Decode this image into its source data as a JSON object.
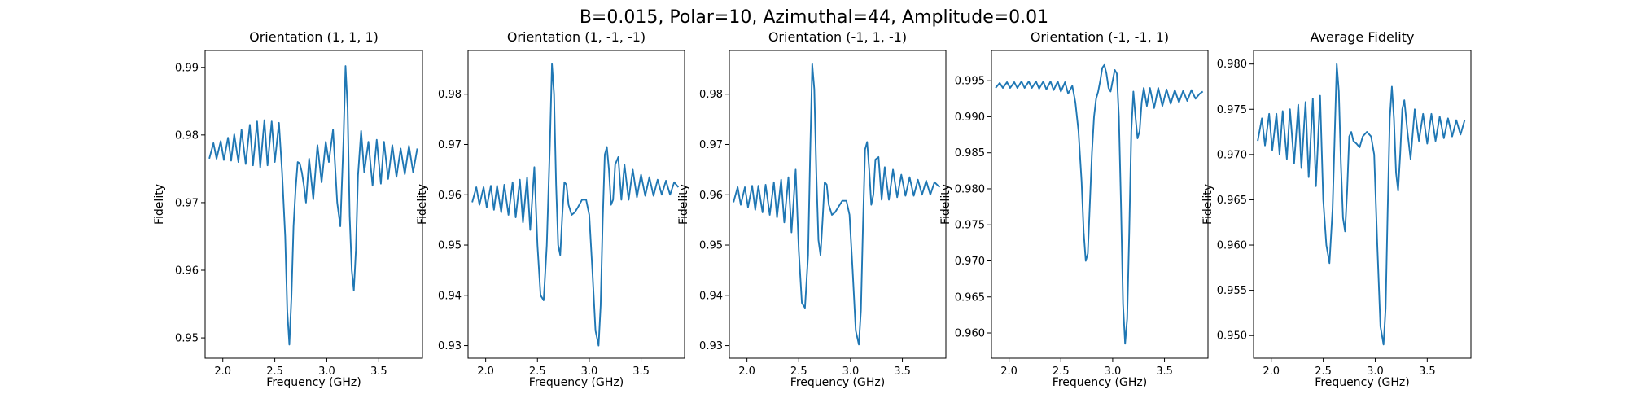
{
  "figure_title": "B=0.015, Polar=10, Azimuthal=44, Amplitude=0.01",
  "chart_data": [
    {
      "type": "line",
      "title": "Orientation (1, 1, 1)",
      "xlabel": "Frequency (GHz)",
      "ylabel": "Fidelity",
      "xlim": [
        1.83,
        3.92
      ],
      "ylim": [
        0.947,
        0.9925
      ],
      "xticks": [
        "2.0",
        "2.5",
        "3.0",
        "3.5"
      ],
      "yticks": [
        "0.95",
        "0.96",
        "0.97",
        "0.98",
        "0.99"
      ],
      "series": [
        {
          "x": [
            1.87,
            1.91,
            1.94,
            1.98,
            2.01,
            2.05,
            2.08,
            2.11,
            2.15,
            2.18,
            2.22,
            2.26,
            2.29,
            2.33,
            2.36,
            2.4,
            2.43,
            2.47,
            2.5,
            2.54,
            2.57,
            2.6,
            2.62,
            2.64,
            2.66,
            2.68,
            2.7,
            2.72,
            2.74,
            2.76,
            2.78,
            2.8,
            2.83,
            2.87,
            2.91,
            2.95,
            2.99,
            3.02,
            3.06,
            3.1,
            3.13,
            3.16,
            3.18,
            3.2,
            3.22,
            3.24,
            3.26,
            3.28,
            3.3,
            3.33,
            3.36,
            3.4,
            3.44,
            3.48,
            3.52,
            3.55,
            3.59,
            3.63,
            3.67,
            3.71,
            3.75,
            3.79,
            3.83,
            3.87
          ],
          "y": [
            0.9765,
            0.9788,
            0.9765,
            0.9791,
            0.9763,
            0.9796,
            0.9762,
            0.9801,
            0.976,
            0.9808,
            0.9757,
            0.9815,
            0.9755,
            0.982,
            0.9752,
            0.9822,
            0.9755,
            0.982,
            0.976,
            0.9818,
            0.9745,
            0.965,
            0.954,
            0.949,
            0.956,
            0.9665,
            0.972,
            0.976,
            0.9758,
            0.9745,
            0.9725,
            0.97,
            0.9765,
            0.9705,
            0.9785,
            0.973,
            0.979,
            0.976,
            0.9808,
            0.97,
            0.9665,
            0.979,
            0.9902,
            0.984,
            0.968,
            0.96,
            0.957,
            0.963,
            0.974,
            0.9806,
            0.9745,
            0.979,
            0.9725,
            0.9793,
            0.9728,
            0.979,
            0.9735,
            0.9785,
            0.9738,
            0.978,
            0.9742,
            0.9784,
            0.9745,
            0.978
          ]
        }
      ]
    },
    {
      "type": "line",
      "title": "Orientation (1, -1, -1)",
      "xlabel": "Frequency (GHz)",
      "ylabel": "Fidelity",
      "xlim": [
        1.83,
        3.92
      ],
      "ylim": [
        0.9275,
        0.9887
      ],
      "xticks": [
        "2.0",
        "2.5",
        "3.0",
        "3.5"
      ],
      "yticks": [
        "0.93",
        "0.94",
        "0.95",
        "0.96",
        "0.97",
        "0.98"
      ],
      "series": [
        {
          "x": [
            1.87,
            1.91,
            1.94,
            1.98,
            2.01,
            2.05,
            2.08,
            2.11,
            2.15,
            2.18,
            2.22,
            2.26,
            2.29,
            2.33,
            2.36,
            2.4,
            2.43,
            2.47,
            2.5,
            2.53,
            2.56,
            2.59,
            2.62,
            2.64,
            2.66,
            2.68,
            2.7,
            2.72,
            2.74,
            2.76,
            2.78,
            2.8,
            2.83,
            2.86,
            2.89,
            2.93,
            2.97,
            3.0,
            3.03,
            3.06,
            3.09,
            3.11,
            3.13,
            3.15,
            3.17,
            3.19,
            3.21,
            3.23,
            3.25,
            3.28,
            3.31,
            3.34,
            3.38,
            3.42,
            3.46,
            3.5,
            3.54,
            3.58,
            3.62,
            3.66,
            3.7,
            3.74,
            3.78,
            3.82,
            3.86
          ],
          "y": [
            0.9585,
            0.9615,
            0.958,
            0.9615,
            0.9575,
            0.9618,
            0.957,
            0.9618,
            0.9565,
            0.962,
            0.956,
            0.9625,
            0.9555,
            0.963,
            0.9545,
            0.9635,
            0.953,
            0.9655,
            0.95,
            0.94,
            0.939,
            0.95,
            0.97,
            0.986,
            0.98,
            0.962,
            0.95,
            0.948,
            0.956,
            0.9625,
            0.962,
            0.958,
            0.956,
            0.9565,
            0.9575,
            0.959,
            0.959,
            0.956,
            0.945,
            0.933,
            0.93,
            0.938,
            0.955,
            0.968,
            0.9695,
            0.965,
            0.958,
            0.959,
            0.966,
            0.9675,
            0.959,
            0.966,
            0.959,
            0.965,
            0.9595,
            0.964,
            0.9598,
            0.9635,
            0.9598,
            0.963,
            0.96,
            0.9628,
            0.96,
            0.9625,
            0.9615
          ]
        }
      ]
    },
    {
      "type": "line",
      "title": "Orientation (-1, 1, -1)",
      "xlabel": "Frequency (GHz)",
      "ylabel": "Fidelity",
      "xlim": [
        1.83,
        3.92
      ],
      "ylim": [
        0.9275,
        0.9887
      ],
      "xticks": [
        "2.0",
        "2.5",
        "3.0",
        "3.5"
      ],
      "yticks": [
        "0.93",
        "0.94",
        "0.95",
        "0.96",
        "0.97",
        "0.98"
      ],
      "series": [
        {
          "x": [
            1.87,
            1.91,
            1.94,
            1.98,
            2.01,
            2.05,
            2.08,
            2.11,
            2.15,
            2.18,
            2.22,
            2.26,
            2.29,
            2.33,
            2.36,
            2.4,
            2.43,
            2.47,
            2.5,
            2.53,
            2.56,
            2.59,
            2.61,
            2.63,
            2.65,
            2.67,
            2.69,
            2.71,
            2.73,
            2.75,
            2.77,
            2.79,
            2.82,
            2.85,
            2.88,
            2.92,
            2.96,
            2.99,
            3.02,
            3.05,
            3.08,
            3.1,
            3.12,
            3.14,
            3.16,
            3.18,
            3.2,
            3.22,
            3.24,
            3.27,
            3.3,
            3.33,
            3.37,
            3.41,
            3.45,
            3.49,
            3.53,
            3.57,
            3.61,
            3.65,
            3.69,
            3.73,
            3.77,
            3.81,
            3.86
          ],
          "y": [
            0.9585,
            0.9615,
            0.958,
            0.9615,
            0.9575,
            0.9618,
            0.957,
            0.9618,
            0.9565,
            0.962,
            0.956,
            0.9625,
            0.9555,
            0.963,
            0.9545,
            0.9635,
            0.9525,
            0.965,
            0.949,
            0.9385,
            0.9375,
            0.948,
            0.968,
            0.986,
            0.981,
            0.964,
            0.951,
            0.948,
            0.955,
            0.9625,
            0.962,
            0.958,
            0.956,
            0.9565,
            0.9575,
            0.9588,
            0.9588,
            0.956,
            0.945,
            0.933,
            0.9302,
            0.937,
            0.954,
            0.969,
            0.9705,
            0.965,
            0.958,
            0.96,
            0.967,
            0.9675,
            0.959,
            0.9655,
            0.959,
            0.965,
            0.9595,
            0.964,
            0.9598,
            0.9635,
            0.9598,
            0.963,
            0.96,
            0.9628,
            0.96,
            0.9625,
            0.9615
          ]
        }
      ]
    },
    {
      "type": "line",
      "title": "Orientation (-1, -1, 1)",
      "xlabel": "Frequency (GHz)",
      "ylabel": "Fidelity",
      "xlim": [
        1.83,
        3.92
      ],
      "ylim": [
        0.9565,
        0.9992
      ],
      "xticks": [
        "2.0",
        "2.5",
        "3.0",
        "3.5"
      ],
      "yticks": [
        "0.960",
        "0.965",
        "0.970",
        "0.975",
        "0.980",
        "0.985",
        "0.990",
        "0.995"
      ],
      "series": [
        {
          "x": [
            1.87,
            1.91,
            1.94,
            1.98,
            2.01,
            2.05,
            2.08,
            2.12,
            2.15,
            2.19,
            2.22,
            2.26,
            2.29,
            2.33,
            2.36,
            2.4,
            2.43,
            2.47,
            2.5,
            2.54,
            2.57,
            2.61,
            2.64,
            2.67,
            2.7,
            2.72,
            2.74,
            2.76,
            2.78,
            2.8,
            2.82,
            2.84,
            2.86,
            2.88,
            2.9,
            2.92,
            2.94,
            2.96,
            2.98,
            3.0,
            3.02,
            3.04,
            3.06,
            3.08,
            3.1,
            3.12,
            3.14,
            3.16,
            3.18,
            3.2,
            3.22,
            3.24,
            3.26,
            3.28,
            3.3,
            3.33,
            3.36,
            3.4,
            3.44,
            3.48,
            3.52,
            3.56,
            3.6,
            3.64,
            3.68,
            3.72,
            3.76,
            3.8,
            3.84,
            3.87
          ],
          "y": [
            0.994,
            0.9947,
            0.994,
            0.9948,
            0.994,
            0.9948,
            0.994,
            0.9949,
            0.994,
            0.9949,
            0.994,
            0.9949,
            0.9939,
            0.9949,
            0.9938,
            0.9949,
            0.9937,
            0.9949,
            0.9935,
            0.9948,
            0.9932,
            0.9943,
            0.992,
            0.988,
            0.981,
            0.974,
            0.97,
            0.971,
            0.978,
            0.985,
            0.99,
            0.9925,
            0.9935,
            0.995,
            0.9968,
            0.9972,
            0.996,
            0.994,
            0.9935,
            0.995,
            0.9965,
            0.996,
            0.99,
            0.978,
            0.964,
            0.9585,
            0.962,
            0.974,
            0.988,
            0.9935,
            0.99,
            0.987,
            0.988,
            0.992,
            0.994,
            0.9915,
            0.994,
            0.9912,
            0.994,
            0.9915,
            0.9938,
            0.9918,
            0.9937,
            0.992,
            0.9936,
            0.9922,
            0.9937,
            0.9925,
            0.9932,
            0.9935
          ]
        }
      ]
    },
    {
      "type": "line",
      "title": "Average Fidelity",
      "xlabel": "Frequency (GHz)",
      "ylabel": "Fidelity",
      "xlim": [
        1.83,
        3.92
      ],
      "ylim": [
        0.9475,
        0.9815
      ],
      "xticks": [
        "2.0",
        "2.5",
        "3.0",
        "3.5"
      ],
      "yticks": [
        "0.950",
        "0.955",
        "0.960",
        "0.965",
        "0.970",
        "0.975",
        "0.980"
      ],
      "series": [
        {
          "x": [
            1.87,
            1.91,
            1.94,
            1.98,
            2.01,
            2.05,
            2.08,
            2.11,
            2.15,
            2.18,
            2.22,
            2.26,
            2.29,
            2.33,
            2.36,
            2.4,
            2.43,
            2.47,
            2.5,
            2.53,
            2.56,
            2.59,
            2.61,
            2.63,
            2.65,
            2.67,
            2.69,
            2.71,
            2.73,
            2.75,
            2.77,
            2.79,
            2.82,
            2.85,
            2.88,
            2.92,
            2.96,
            2.99,
            3.02,
            3.05,
            3.08,
            3.1,
            3.12,
            3.14,
            3.16,
            3.18,
            3.2,
            3.22,
            3.24,
            3.26,
            3.28,
            3.31,
            3.34,
            3.38,
            3.42,
            3.46,
            3.5,
            3.54,
            3.58,
            3.62,
            3.66,
            3.7,
            3.74,
            3.78,
            3.82,
            3.86
          ],
          "y": [
            0.9715,
            0.974,
            0.971,
            0.9745,
            0.9705,
            0.9745,
            0.97,
            0.9748,
            0.9695,
            0.975,
            0.969,
            0.9755,
            0.9685,
            0.9758,
            0.9675,
            0.9762,
            0.9665,
            0.9765,
            0.965,
            0.96,
            0.958,
            0.964,
            0.972,
            0.98,
            0.977,
            0.969,
            0.963,
            0.9615,
            0.966,
            0.972,
            0.9725,
            0.9715,
            0.9712,
            0.9708,
            0.972,
            0.9725,
            0.972,
            0.97,
            0.96,
            0.951,
            0.949,
            0.953,
            0.964,
            0.974,
            0.9775,
            0.974,
            0.968,
            0.966,
            0.97,
            0.975,
            0.976,
            0.9725,
            0.9695,
            0.975,
            0.9715,
            0.9745,
            0.9712,
            0.9745,
            0.9715,
            0.9742,
            0.9718,
            0.974,
            0.972,
            0.9738,
            0.9722,
            0.9738
          ]
        }
      ]
    }
  ]
}
